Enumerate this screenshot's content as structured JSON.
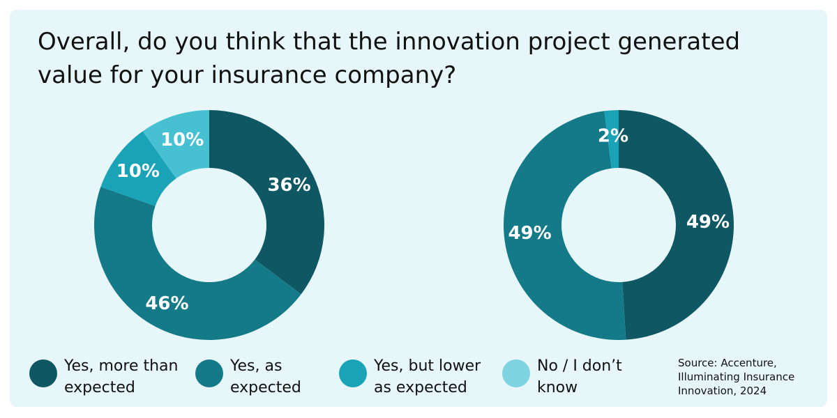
{
  "chart_data": {
    "title": "Overall, do you think that the innovation project generated value for your insurance company?",
    "legend": [
      {
        "label": "Yes, more than expected",
        "color": "#0f5763"
      },
      {
        "label": "Yes, as expected",
        "color": "#147a88"
      },
      {
        "label": "Yes, but lower as expected",
        "color": "#1aa3b7"
      },
      {
        "label": "No / I don’t know",
        "color": "#7dd3e0"
      }
    ],
    "legend_placement": "bottom",
    "charts": [
      {
        "type": "pie",
        "style": "donut",
        "slices": [
          {
            "category": "Yes, more than expected",
            "value": 36,
            "label": "36%",
            "color": "#0f5763"
          },
          {
            "category": "Yes, as expected",
            "value": 46,
            "label": "46%",
            "color": "#147a88"
          },
          {
            "category": "Yes, but lower as expected",
            "value": 10,
            "label": "10%",
            "color": "#1aa3b7"
          },
          {
            "category": "No / I don’t know",
            "value": 10,
            "label": "10%",
            "color": "#47c1d2"
          }
        ]
      },
      {
        "type": "pie",
        "style": "donut",
        "slices": [
          {
            "category": "Yes, more than expected",
            "value": 49,
            "label": "49%",
            "color": "#0f5763"
          },
          {
            "category": "Yes, as expected",
            "value": 49,
            "label": "49%",
            "color": "#147a88"
          },
          {
            "category": "Yes, but lower as expected",
            "value": 2,
            "label": "2%",
            "color": "#1aa3b7"
          }
        ]
      }
    ]
  },
  "source": "Source: Accenture, Illuminating Insurance Innovation, 2024"
}
